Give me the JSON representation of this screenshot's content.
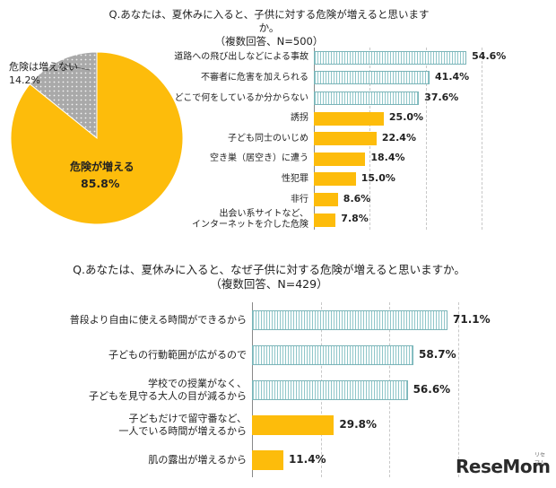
{
  "chart_data": [
    {
      "type": "pie",
      "title": "Q.あなたは、夏休みに入ると、子供に対する危険が増えると思いますか。",
      "subtitle": "（複数回答、N=500）",
      "slices": [
        {
          "label": "危険が増える",
          "value": 85.8,
          "display": "85.8%",
          "color": "#fdbc0b"
        },
        {
          "label": "危険は増えない",
          "value": 14.2,
          "display": "14.2%",
          "color": "#9a9a9a"
        }
      ]
    },
    {
      "type": "bar",
      "orientation": "horizontal",
      "xlim": [
        0,
        60
      ],
      "categories": [
        "道路への飛び出しなどによる事故",
        "不審者に危害を加えられる",
        "どこで何をしているか分からない",
        "誘拐",
        "子ども同士のいじめ",
        "空き巣（居空き）に遭う",
        "性犯罪",
        "非行",
        "出会い系サイトなど、\nインターネットを介した危険"
      ],
      "values": [
        54.6,
        41.4,
        37.6,
        25.0,
        22.4,
        18.4,
        15.0,
        8.6,
        7.8
      ],
      "labels": [
        "54.6%",
        "41.4%",
        "37.6%",
        "25.0%",
        "22.4%",
        "18.4%",
        "15.0%",
        "8.6%",
        "7.8%"
      ],
      "styles": [
        "striped",
        "striped",
        "striped",
        "solid",
        "solid",
        "solid",
        "solid",
        "solid",
        "solid"
      ]
    },
    {
      "type": "bar",
      "orientation": "horizontal",
      "title": "Q.あなたは、夏休みに入ると、なぜ子供に対する危険が増えると思いますか。",
      "subtitle": "（複数回答、N=429）",
      "xlim": [
        0,
        75
      ],
      "categories": [
        "普段より自由に使える時間ができるから",
        "子どもの行動範囲が広がるので",
        "学校での授業がなく、\n子どもを見守る大人の目が減るから",
        "子どもだけで留守番など、\n一人でいる時間が増えるから",
        "肌の露出が増えるから"
      ],
      "values": [
        71.1,
        58.7,
        56.6,
        29.8,
        11.4
      ],
      "labels": [
        "71.1%",
        "58.7%",
        "56.6%",
        "29.8%",
        "11.4%"
      ],
      "styles": [
        "striped",
        "striped",
        "striped",
        "solid",
        "solid"
      ]
    }
  ],
  "brand": {
    "logo": "ReseMom",
    "logo_small": "リセマム"
  }
}
